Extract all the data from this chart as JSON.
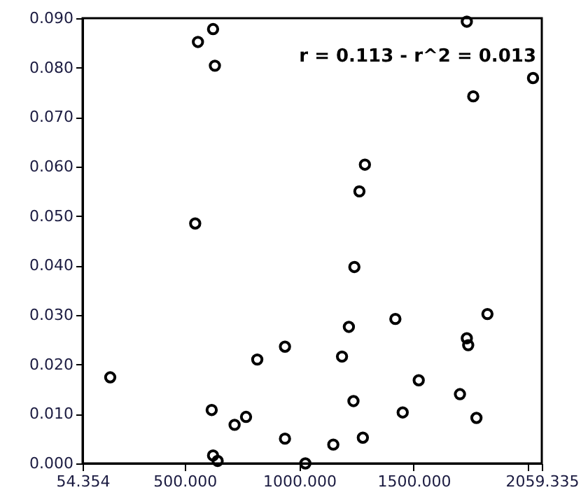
{
  "chart_data": {
    "type": "scatter",
    "annotations": [
      "r = 0.113 - r^2 = 0.013"
    ],
    "x": [
      624,
      558,
      632,
      546,
      1732,
      2021,
      1760,
      1287,
      1263,
      175,
      618,
      718,
      768,
      817,
      938,
      938,
      624,
      644,
      1241,
      1420,
      1822,
      1217,
      1732,
      1738,
      1187,
      1522,
      1702,
      1237,
      1452,
      1774,
      1278,
      1149,
      1027
    ],
    "series": [
      {
        "color": "#000000",
        "values": [
          0.0878,
          0.0852,
          0.0804,
          0.0485,
          0.0893,
          0.0779,
          0.0742,
          0.0604,
          0.055,
          0.0174,
          0.0108,
          0.0078,
          0.0094,
          0.021,
          0.0236,
          0.005,
          0.0016,
          0.0005,
          0.0397,
          0.0292,
          0.0302,
          0.0276,
          0.0253,
          0.0239,
          0.0216,
          0.0168,
          0.014,
          0.0126,
          0.0103,
          0.0092,
          0.0052,
          0.0038,
          0.0
        ]
      }
    ],
    "xlim": [
      54.354,
      2059.335
    ],
    "xticks": [
      54.354,
      {
        "value": 500,
        "label": "500.000"
      },
      {
        "value": 1000,
        "label": "1000.000"
      },
      {
        "value": 1500,
        "label": "1500.000"
      },
      {
        "value": 2000,
        "label": null
      },
      2059.335
    ],
    "ylim": [
      0,
      0.09
    ],
    "yticks": [
      {
        "value": 0,
        "label": "0.000"
      },
      {
        "value": 0.01,
        "label": "0.010"
      },
      {
        "value": 0.02,
        "label": "0.020"
      },
      {
        "value": 0.03,
        "label": "0.030"
      },
      {
        "value": 0.04,
        "label": "0.040"
      },
      {
        "value": 0.05,
        "label": "0.050"
      },
      {
        "value": 0.06,
        "label": "0.060"
      },
      {
        "value": 0.07,
        "label": "0.070"
      },
      {
        "value": 0.08,
        "label": "0.080"
      },
      {
        "value": 0.09,
        "label": "0.090"
      }
    ],
    "grid": false,
    "marker": "circle"
  }
}
